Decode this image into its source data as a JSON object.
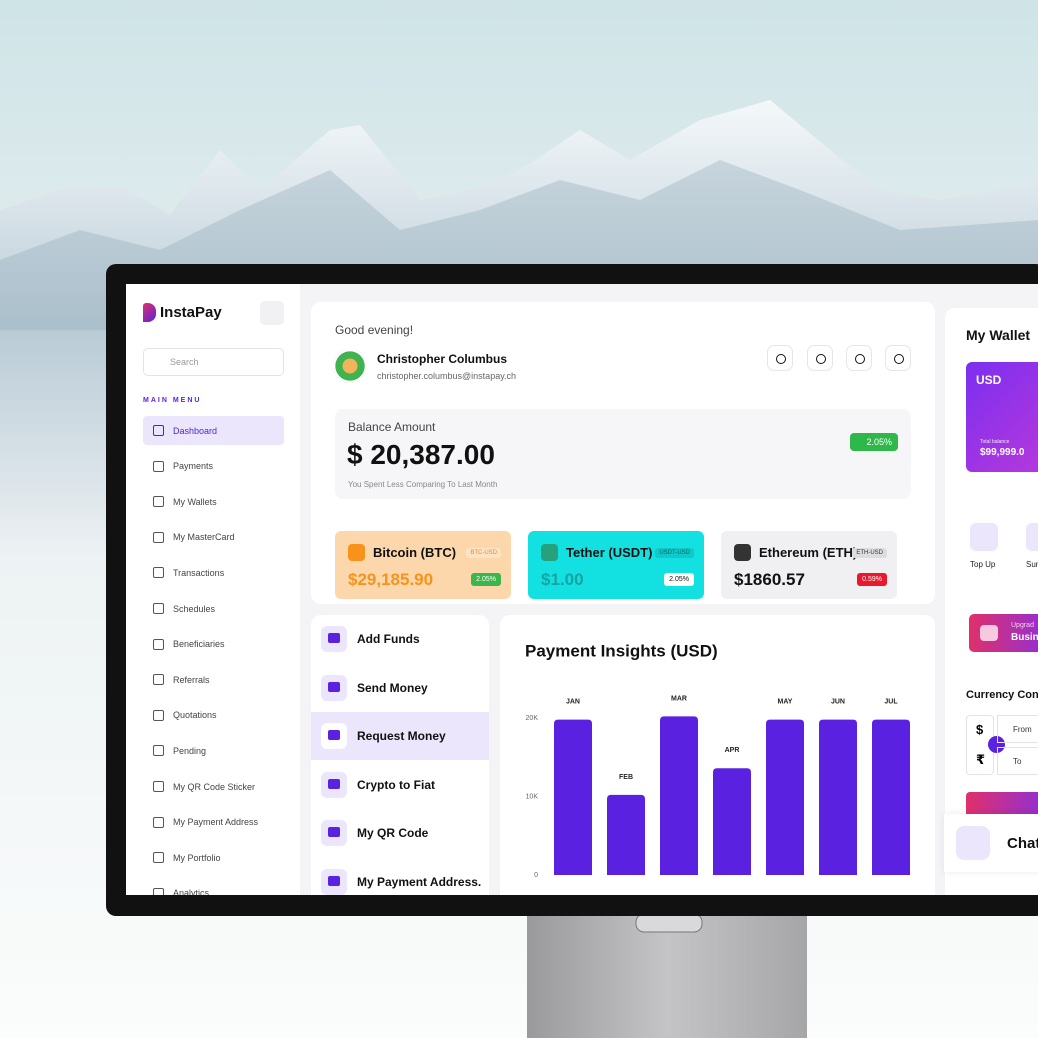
{
  "sidebar": {
    "brand": "InstaPay",
    "search": "Search",
    "menu_title": "MAIN MENU",
    "menu": [
      "Dashboard",
      "Payments",
      "My Wallets",
      "My MasterCard",
      "Transactions",
      "Schedules",
      "Beneficiaries",
      "Referrals",
      "Quotations",
      "Pending",
      "My QR Code Sticker",
      "My Payment Address",
      "My Portfolio",
      "Analytics"
    ]
  },
  "header": {
    "greeting": "Good evening!",
    "name": "Christopher Columbus",
    "email": "christopher.columbus@instapay.ch"
  },
  "balance": {
    "label": "Balance Amount",
    "amount": "$ 20,387.00",
    "change": "2.05%",
    "note": "You Spent Less Comparing To Last Month"
  },
  "crypto": [
    {
      "name": "Bitcoin (BTC)",
      "pair": "BTC-USD",
      "price": "$29,185.90",
      "change": "2.05%"
    },
    {
      "name": "Tether (USDT)",
      "pair": "USDT-USD",
      "price": "$1.00",
      "change": "2.05%"
    },
    {
      "name": "Ethereum (ETH)",
      "pair": "ETH-USD",
      "price": "$1860.57",
      "change": "0.59%"
    }
  ],
  "actions": [
    "Add Funds",
    "Send Money",
    "Request Money",
    "Crypto to Fiat",
    "My QR Code",
    "My Payment Address."
  ],
  "chart_data": {
    "type": "bar",
    "title": "Payment Insights (USD)",
    "categories": [
      "JAN",
      "FEB",
      "MAR",
      "APR",
      "MAY",
      "JUN",
      "JUL"
    ],
    "values": [
      19800,
      10200,
      20200,
      13600,
      19800,
      19800,
      19800
    ],
    "color": "#5a22e0",
    "ylim": [
      0,
      20500
    ],
    "yticks": [
      0,
      {
        "value": 10000,
        "label": "10K"
      },
      {
        "value": 20000,
        "label": "20K"
      }
    ],
    "grid": false
  },
  "wallet": {
    "title": "My Wallet",
    "currency": "USD",
    "total_label": "Total balance",
    "total": "$99,999.0",
    "actions": [
      "Top Up",
      "Sum"
    ],
    "upgrade": [
      "Upgrad",
      "Busin"
    ],
    "converter_title": "Currency Con",
    "symbols": [
      "$",
      "₹"
    ],
    "from": "From",
    "to": "To",
    "chat": "Chat"
  }
}
